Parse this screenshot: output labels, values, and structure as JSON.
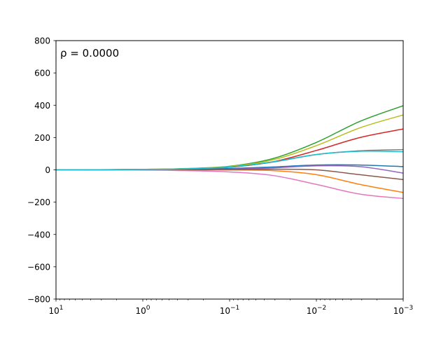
{
  "chart_data": {
    "type": "line",
    "title": "",
    "annotation": "ρ = 0.0000",
    "xlabel": "",
    "ylabel": "",
    "xscale": "log",
    "x_direction": "decreasing",
    "xlim": [
      10,
      0.001
    ],
    "ylim": [
      -800,
      800
    ],
    "grid": false,
    "legend": "none",
    "x_ticks": [
      {
        "value": 10,
        "label": "10¹",
        "base": "10",
        "exp": "1"
      },
      {
        "value": 1,
        "label": "10⁰",
        "base": "10",
        "exp": "0"
      },
      {
        "value": 0.1,
        "label": "10⁻¹",
        "base": "10",
        "exp": "−1"
      },
      {
        "value": 0.01,
        "label": "10⁻²",
        "base": "10",
        "exp": "−2"
      },
      {
        "value": 0.001,
        "label": "10⁻³",
        "base": "10",
        "exp": "−3"
      }
    ],
    "y_ticks": [
      {
        "value": 800,
        "label": "800"
      },
      {
        "value": 600,
        "label": "600"
      },
      {
        "value": 400,
        "label": "400"
      },
      {
        "value": 200,
        "label": "200"
      },
      {
        "value": 0,
        "label": "0"
      },
      {
        "value": -200,
        "label": "−200"
      },
      {
        "value": -400,
        "label": "−400"
      },
      {
        "value": -600,
        "label": "−600"
      },
      {
        "value": -800,
        "label": "−800"
      }
    ],
    "x": [
      10,
      3.16,
      1,
      0.316,
      0.1,
      0.0316,
      0.01,
      0.00316,
      0.001
    ],
    "series": [
      {
        "color": "#1f77b4",
        "values": [
          0,
          0.3,
          1,
          3,
          8,
          18,
          30,
          30,
          20
        ]
      },
      {
        "color": "#ff7f0e",
        "values": [
          0,
          -0.2,
          -0.5,
          -1,
          -1,
          -5,
          -30,
          -90,
          -140
        ]
      },
      {
        "color": "#2ca02c",
        "values": [
          0,
          1,
          3,
          8,
          22,
          70,
          170,
          300,
          397
        ]
      },
      {
        "color": "#d62728",
        "values": [
          0,
          0.8,
          2.5,
          6,
          16,
          50,
          120,
          200,
          253
        ]
      },
      {
        "color": "#9467bd",
        "values": [
          0,
          0.2,
          0.5,
          1.5,
          4,
          12,
          25,
          20,
          -20
        ]
      },
      {
        "color": "#8c564b",
        "values": [
          0,
          0.1,
          0.3,
          0.8,
          2,
          4,
          0,
          -30,
          -60
        ]
      },
      {
        "color": "#e377c2",
        "values": [
          0,
          -0.3,
          -1.5,
          -5,
          -13,
          -35,
          -90,
          -150,
          -177
        ]
      },
      {
        "color": "#7f7f7f",
        "values": [
          0,
          0.8,
          2.5,
          6,
          17,
          48,
          95,
          118,
          125
        ]
      },
      {
        "color": "#bcbd22",
        "values": [
          0,
          1,
          3,
          7,
          20,
          62,
          150,
          260,
          340
        ]
      },
      {
        "color": "#17becf",
        "values": [
          0,
          0.8,
          2.6,
          6.5,
          18,
          50,
          95,
          115,
          112
        ]
      }
    ]
  }
}
